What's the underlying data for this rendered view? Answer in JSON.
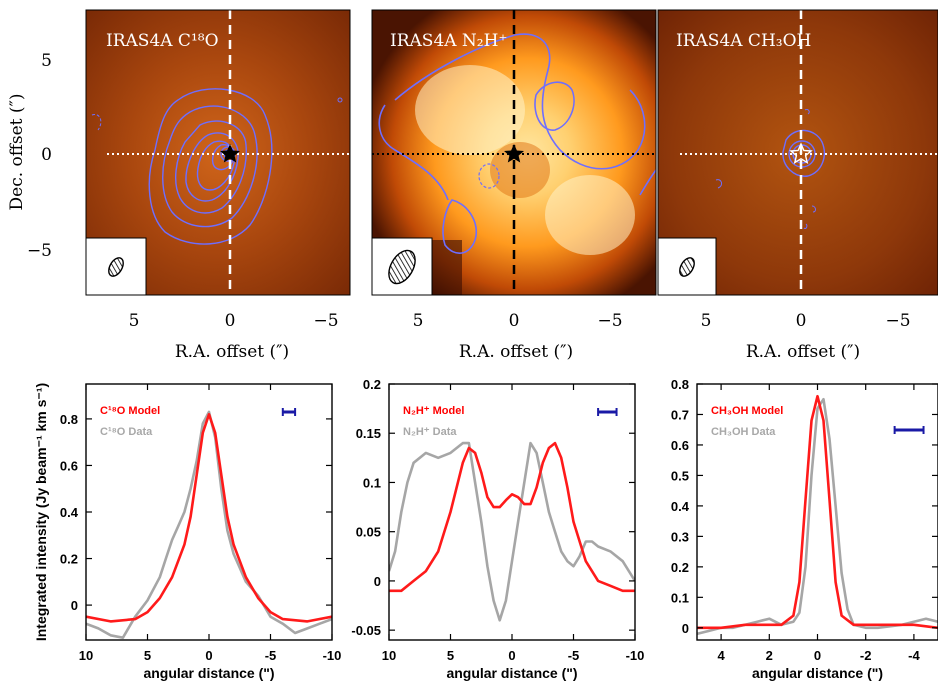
{
  "maps": [
    {
      "title": "IRAS4A C¹⁸O",
      "xlabel": "R.A. offset (″)",
      "ylabel": "Dec. offset (″)",
      "xticks": [
        "5",
        "0",
        "−5"
      ],
      "yticks": [
        "5",
        "0",
        "−5"
      ]
    },
    {
      "title": "IRAS4A N₂H⁺",
      "xlabel": "R.A. offset (″)",
      "xticks": [
        "5",
        "0",
        "−5"
      ]
    },
    {
      "title": "IRAS4A CH₃OH",
      "xlabel": "R.A. offset (″)",
      "xticks": [
        "5",
        "0",
        "−5"
      ]
    }
  ],
  "colors": {
    "model": "#ff1a1a",
    "data": "#a6a6a6",
    "beam_bar": "#1a1aa6",
    "contour": "#5a5aff"
  },
  "chart_data": [
    {
      "type": "line",
      "xlabel": "angular distance (\")",
      "ylabel": "Integrated intensity (Jy beam⁻¹ km s⁻¹)",
      "xlim": [
        10,
        -10
      ],
      "ylim": [
        -0.15,
        0.95
      ],
      "xticks": [
        "10",
        "5",
        "0",
        "-5",
        "-10"
      ],
      "yticks": [
        "0",
        "0.2",
        "0.4",
        "0.6",
        "0.8"
      ],
      "ytick_values": [
        0,
        0.2,
        0.4,
        0.6,
        0.8
      ],
      "xtick_values": [
        10,
        5,
        0,
        -5,
        -10
      ],
      "series": [
        {
          "name": "C¹⁸O Model",
          "x": [
            10,
            8,
            6,
            5,
            4,
            3,
            2,
            1.5,
            1,
            0.5,
            0,
            -0.5,
            -1,
            -1.5,
            -2,
            -3,
            -4,
            -5,
            -6,
            -8,
            -10
          ],
          "y": [
            -0.05,
            -0.07,
            -0.06,
            -0.03,
            0.03,
            0.12,
            0.26,
            0.38,
            0.56,
            0.74,
            0.82,
            0.74,
            0.56,
            0.38,
            0.26,
            0.12,
            0.03,
            -0.03,
            -0.06,
            -0.07,
            -0.05
          ]
        },
        {
          "name": "C¹⁸O Data",
          "x": [
            10,
            9,
            8,
            7,
            6,
            5,
            4,
            3.5,
            3,
            2.5,
            2,
            1.5,
            1,
            0.5,
            0,
            -0.5,
            -1,
            -1.5,
            -2,
            -2.5,
            -3,
            -4,
            -5,
            -6,
            -7,
            -8,
            -9,
            -10
          ],
          "y": [
            -0.08,
            -0.1,
            -0.13,
            -0.14,
            -0.05,
            0.02,
            0.12,
            0.2,
            0.28,
            0.34,
            0.4,
            0.5,
            0.62,
            0.78,
            0.83,
            0.72,
            0.5,
            0.32,
            0.22,
            0.16,
            0.1,
            0.04,
            -0.05,
            -0.08,
            -0.12,
            -0.1,
            -0.08,
            -0.06
          ]
        }
      ],
      "beam_bar": [
        -7,
        -6
      ]
    },
    {
      "type": "line",
      "xlabel": "angular distance (\")",
      "xlim": [
        10,
        -10
      ],
      "ylim": [
        -0.06,
        0.2
      ],
      "xticks": [
        "10",
        "5",
        "0",
        "-5",
        "-10"
      ],
      "yticks": [
        "-0.05",
        "0",
        "0.05",
        "0.1",
        "0.15",
        "0.2"
      ],
      "ytick_values": [
        -0.05,
        0,
        0.05,
        0.1,
        0.15,
        0.2
      ],
      "xtick_values": [
        10,
        5,
        0,
        -5,
        -10
      ],
      "series": [
        {
          "name": "N₂H⁺ Model",
          "x": [
            10,
            9,
            8,
            7,
            6,
            5,
            4,
            3.5,
            3,
            2.5,
            2,
            1.5,
            1,
            0.5,
            0,
            -0.5,
            -1,
            -1.5,
            -2,
            -2.5,
            -3,
            -3.5,
            -4,
            -4.5,
            -5,
            -6,
            -7,
            -8,
            -9,
            -10
          ],
          "y": [
            -0.01,
            -0.01,
            0.0,
            0.01,
            0.03,
            0.07,
            0.12,
            0.135,
            0.13,
            0.11,
            0.085,
            0.075,
            0.075,
            0.082,
            0.088,
            0.085,
            0.078,
            0.078,
            0.095,
            0.12,
            0.135,
            0.14,
            0.125,
            0.095,
            0.06,
            0.02,
            0.0,
            -0.005,
            -0.01,
            -0.01
          ]
        },
        {
          "name": "N₂H⁺ Data",
          "x": [
            10,
            9.5,
            9,
            8.5,
            8,
            7,
            6,
            5,
            4,
            3.5,
            3,
            2.5,
            2,
            1.5,
            1,
            0.5,
            0,
            -0.5,
            -1,
            -1.5,
            -2,
            -2.5,
            -3,
            -3.5,
            -4,
            -4.5,
            -5,
            -5.5,
            -6,
            -6.5,
            -7,
            -8,
            -9,
            -10
          ],
          "y": [
            0.01,
            0.03,
            0.07,
            0.1,
            0.12,
            0.13,
            0.125,
            0.13,
            0.14,
            0.14,
            0.1,
            0.06,
            0.015,
            -0.02,
            -0.04,
            -0.02,
            0.02,
            0.06,
            0.1,
            0.14,
            0.13,
            0.1,
            0.07,
            0.05,
            0.03,
            0.02,
            0.015,
            0.025,
            0.04,
            0.04,
            0.035,
            0.03,
            0.02,
            0.0
          ]
        }
      ],
      "beam_bar": [
        -8.5,
        -7
      ]
    },
    {
      "type": "line",
      "xlabel": "angular distance (\")",
      "xlim": [
        5,
        -5
      ],
      "ylim": [
        -0.04,
        0.8
      ],
      "xticks": [
        "4",
        "2",
        "0",
        "-2",
        "-4"
      ],
      "yticks": [
        "0",
        "0.1",
        "0.2",
        "0.3",
        "0.4",
        "0.5",
        "0.6",
        "0.7",
        "0.8"
      ],
      "ytick_values": [
        0,
        0.1,
        0.2,
        0.3,
        0.4,
        0.5,
        0.6,
        0.7,
        0.8
      ],
      "xtick_values": [
        4,
        2,
        0,
        -2,
        -4
      ],
      "series": [
        {
          "name": "CH₃OH Model",
          "x": [
            5,
            4,
            3,
            2,
            1.5,
            1,
            0.75,
            0.5,
            0.25,
            0,
            -0.25,
            -0.5,
            -0.75,
            -1,
            -1.5,
            -2,
            -3,
            -4,
            -5
          ],
          "y": [
            0.0,
            0.0,
            0.01,
            0.01,
            0.01,
            0.04,
            0.15,
            0.42,
            0.68,
            0.76,
            0.68,
            0.42,
            0.15,
            0.04,
            0.01,
            0.01,
            0.01,
            0.01,
            0.0
          ]
        },
        {
          "name": "CH₃OH Data",
          "x": [
            5,
            4.5,
            4,
            3.5,
            3,
            2.5,
            2,
            1.5,
            1,
            0.75,
            0.5,
            0.25,
            0,
            -0.25,
            -0.5,
            -0.75,
            -1,
            -1.25,
            -1.5,
            -2,
            -2.5,
            -3,
            -3.5,
            -4,
            -4.5,
            -5
          ],
          "y": [
            -0.02,
            -0.01,
            0.0,
            0.0,
            0.01,
            0.02,
            0.03,
            0.01,
            0.02,
            0.05,
            0.2,
            0.5,
            0.72,
            0.75,
            0.62,
            0.4,
            0.18,
            0.06,
            0.01,
            0.0,
            0.0,
            0.005,
            0.01,
            0.02,
            0.03,
            0.02
          ]
        }
      ],
      "beam_bar": [
        -3.2,
        -4.4
      ]
    }
  ]
}
